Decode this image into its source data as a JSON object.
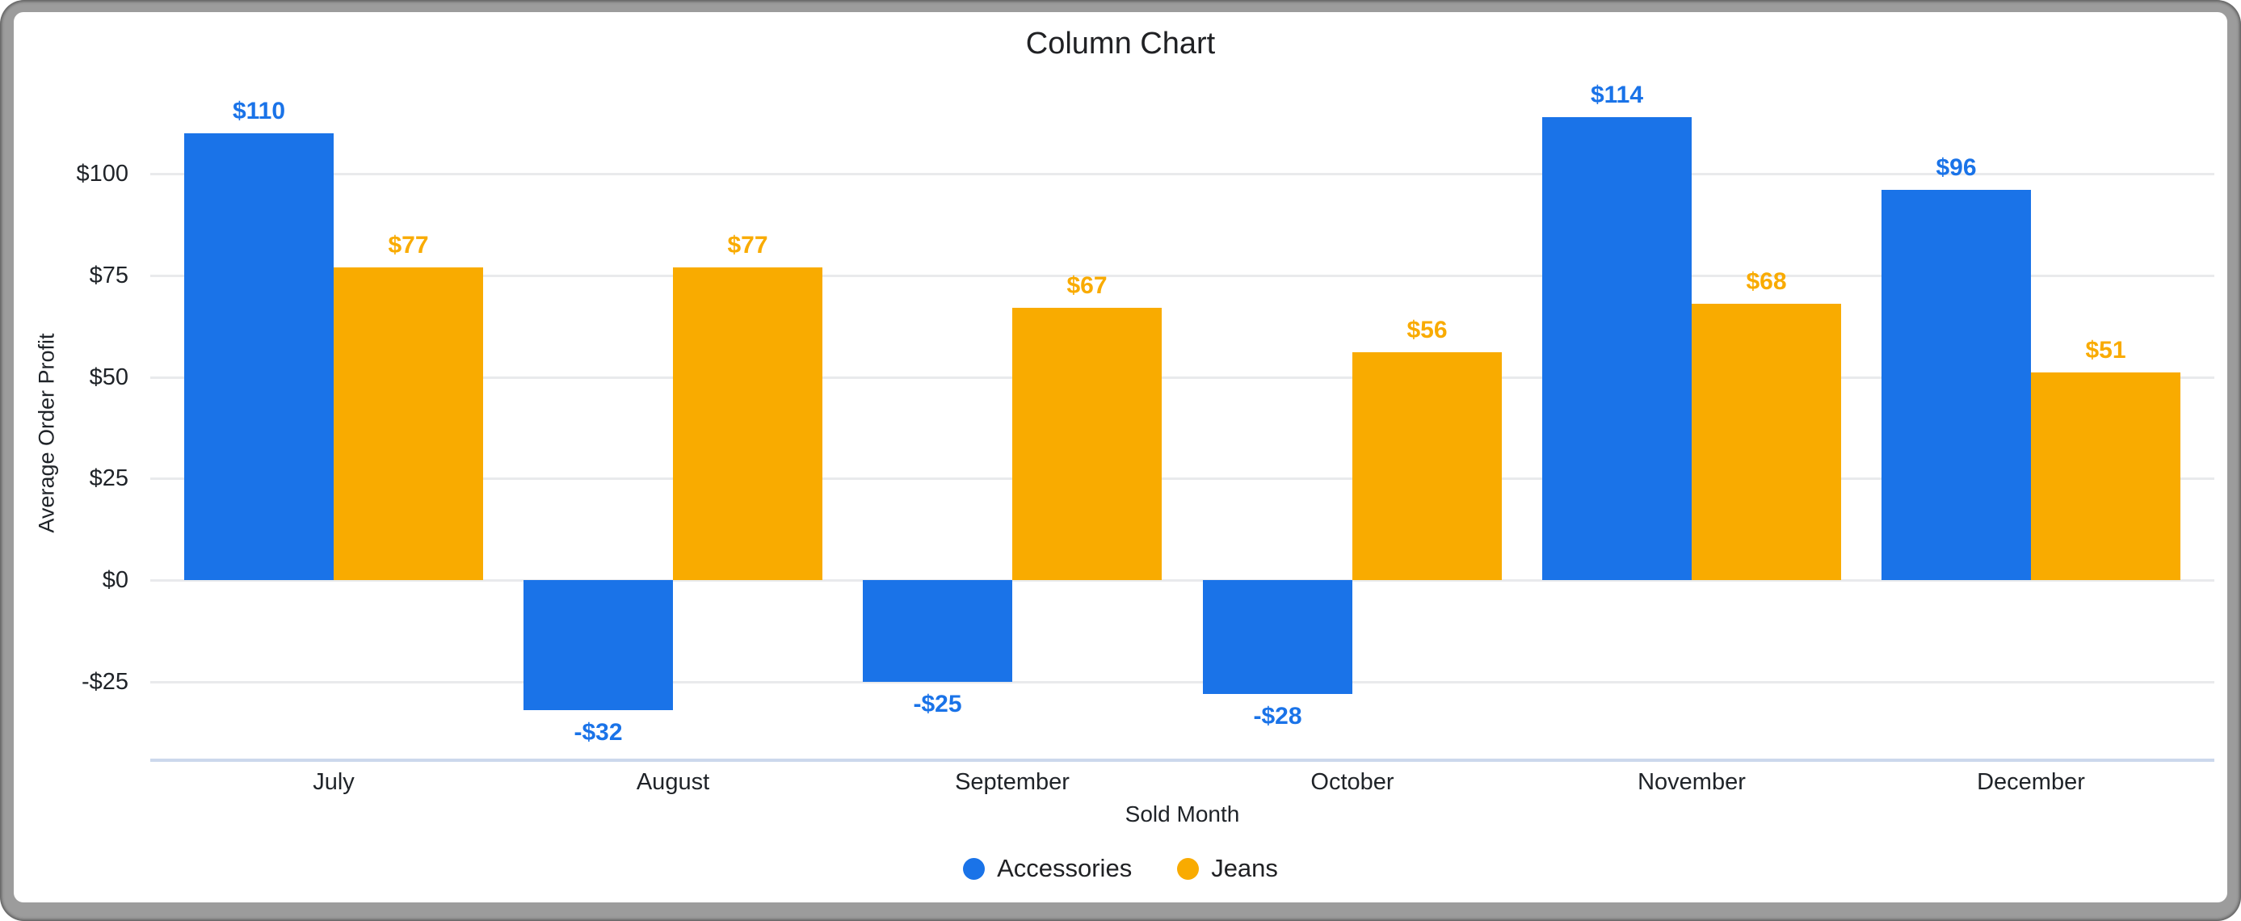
{
  "title": "Column Chart",
  "y_axis": {
    "title": "Average Order Profit",
    "tick_labels": [
      "$100",
      "$75",
      "$50",
      "$25",
      "$0",
      "-$25"
    ]
  },
  "x_axis": {
    "title": "Sold Month",
    "categories": [
      "July",
      "August",
      "September",
      "October",
      "November",
      "December"
    ]
  },
  "legend": [
    {
      "label": "Accessories",
      "color": "#1a73e8"
    },
    {
      "label": "Jeans",
      "color": "#f9ab00"
    }
  ],
  "chart_data": {
    "type": "bar",
    "title": "Column Chart",
    "xlabel": "Sold Month",
    "ylabel": "Average Order Profit",
    "categories": [
      "July",
      "August",
      "September",
      "October",
      "November",
      "December"
    ],
    "series": [
      {
        "name": "Accessories",
        "color": "#1a73e8",
        "values": [
          110,
          -32,
          -25,
          -28,
          114,
          96
        ],
        "labels": [
          "$110",
          "-$32",
          "-$25",
          "-$28",
          "$114",
          "$96"
        ]
      },
      {
        "name": "Jeans",
        "color": "#f9ab00",
        "values": [
          77,
          77,
          67,
          56,
          68,
          51
        ],
        "labels": [
          "$77",
          "$77",
          "$67",
          "$56",
          "$68",
          "$51"
        ]
      }
    ],
    "yticks": [
      {
        "value": 100,
        "label": "$100"
      },
      {
        "value": 75,
        "label": "$75"
      },
      {
        "value": 50,
        "label": "$50"
      },
      {
        "value": 25,
        "label": "$25"
      },
      {
        "value": 0,
        "label": "$0"
      },
      {
        "value": -25,
        "label": "-$25"
      }
    ],
    "ylim": [
      -45,
      120
    ],
    "grid": true,
    "legend_position": "bottom"
  }
}
